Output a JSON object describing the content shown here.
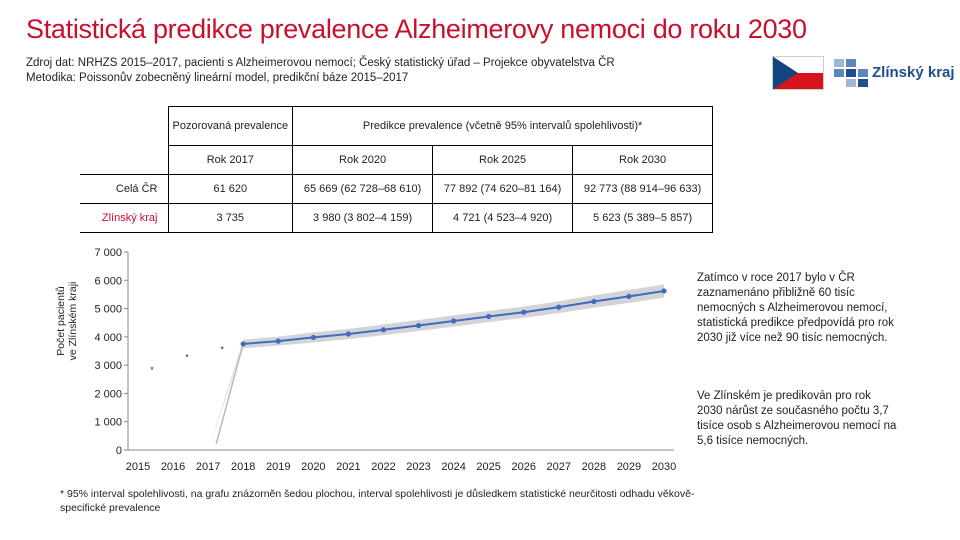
{
  "title": "Statistická predikce prevalence Alzheimerovy nemoci do roku 2030",
  "source": {
    "line1": "Zdroj dat: NRHZS 2015–2017, pacienti s Alzheimerovou nemocí; Český statistický úřad – Projekce obyvatelstva ČR",
    "line2": "Metodika: Poissonův zobecněný lineární model, predikční báze 2015–2017"
  },
  "logo": {
    "text": "Zlínský kraj",
    "icon": "czech-flag-icon"
  },
  "table": {
    "header_observed": "Pozorovaná prevalence",
    "header_predicted": "Predikce prevalence (včetně 95% intervalů spolehlivosti)*",
    "years": [
      "Rok 2017",
      "Rok 2020",
      "Rok 2025",
      "Rok 2030"
    ],
    "rows": [
      {
        "label": "Celá ČR",
        "values": [
          "61 620",
          "65 669 (62 728–68 610)",
          "77 892 (74 620–81 164)",
          "92 773 (88 914–96 633)"
        ]
      },
      {
        "label": "Zlínský kraj",
        "values": [
          "3 735",
          "3 980 (3 802–4 159)",
          "4 721 (4 523–4 920)",
          "5 623 (5 389–5 857)"
        ]
      }
    ]
  },
  "chart_data": {
    "type": "line",
    "ylabel": "Počet pacientů ve Zlínském kraji",
    "ylim": [
      0,
      7000
    ],
    "yticks": [
      0,
      1000,
      2000,
      3000,
      4000,
      5000,
      6000,
      7000
    ],
    "ytick_labels": [
      "0",
      "1 000",
      "2 000",
      "3 000",
      "4 000",
      "5 000",
      "6 000",
      "7 000"
    ],
    "x": [
      2015,
      2016,
      2017,
      2018,
      2019,
      2020,
      2021,
      2022,
      2023,
      2024,
      2025,
      2026,
      2027,
      2028,
      2029,
      2030
    ],
    "observed": {
      "x": [
        2015,
        2016,
        2017
      ],
      "y": [
        3000,
        3450,
        3735
      ],
      "marker": "*"
    },
    "predicted": {
      "x": [
        2018,
        2019,
        2020,
        2021,
        2022,
        2023,
        2024,
        2025,
        2026,
        2027,
        2028,
        2029,
        2030
      ],
      "y": [
        3750,
        3850,
        3980,
        4100,
        4250,
        4400,
        4560,
        4721,
        4870,
        5050,
        5250,
        5430,
        5623
      ],
      "lower": [
        3600,
        3690,
        3802,
        3920,
        4060,
        4205,
        4360,
        4523,
        4670,
        4840,
        5030,
        5200,
        5389
      ],
      "upper": [
        3900,
        4010,
        4159,
        4280,
        4440,
        4595,
        4760,
        4920,
        5070,
        5260,
        5470,
        5660,
        5857
      ]
    },
    "colors": {
      "line": "#3f6cbf",
      "band": "#d4d4d8",
      "axis": "#888888"
    },
    "grid": false,
    "legend": "none"
  },
  "side_text": {
    "p1": "Zatímco v roce 2017 bylo v ČR zaznamenáno přibližně 60 tisíc nemocných s Alzheimerovou nemocí, statistická predikce předpovídá pro rok 2030 již více než 90 tisíc nemocných.",
    "p2": "Ve Zlínském je predikován pro rok 2030 nárůst ze současného počtu 3,7 tisíce osob s Alzheimerovou nemocí na 5,6 tisíce nemocných."
  },
  "footnote": "* 95% interval spolehlivosti, na grafu znázorněn šedou plochou, interval spolehlivosti je důsledkem statistické neurčitosti odhadu věkově-specifické prevalence"
}
